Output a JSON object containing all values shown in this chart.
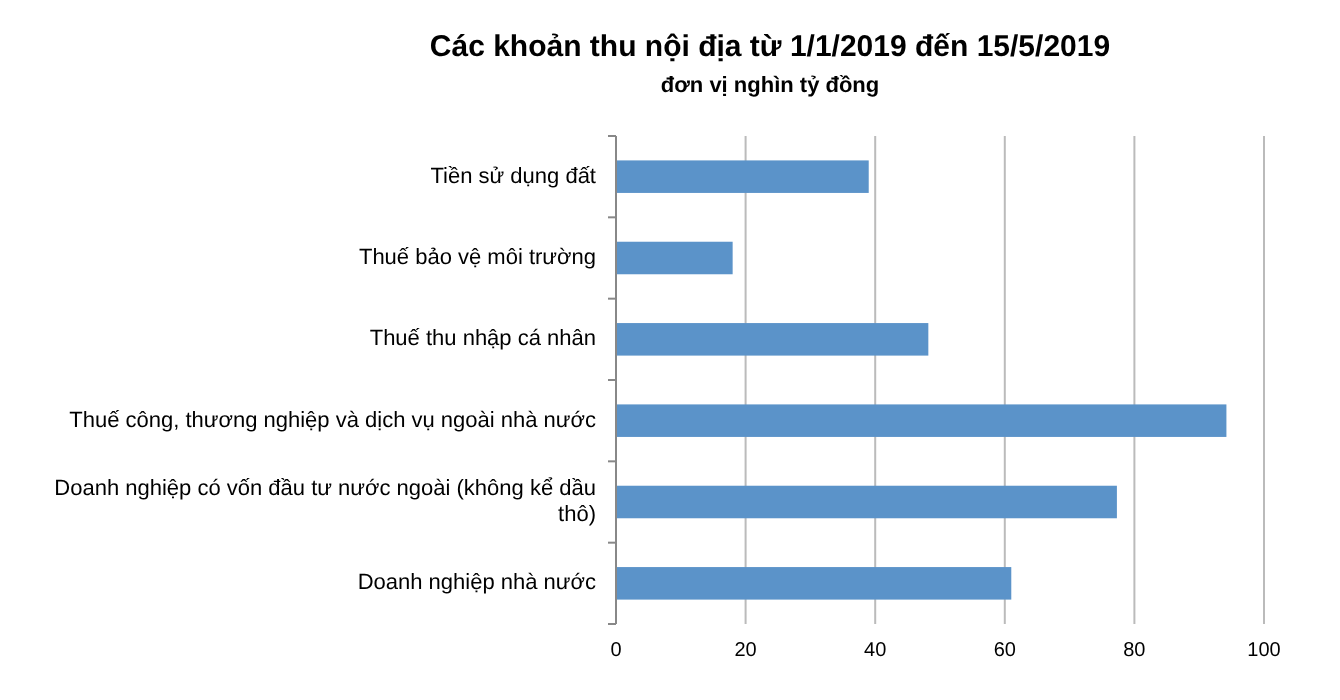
{
  "chart_data": {
    "type": "bar",
    "orientation": "horizontal",
    "title": "Các khoản thu nội địa từ 1/1/2019 đến 15/5/2019",
    "subtitle": "đơn vị nghìn tỷ đồng",
    "categories": [
      "Tiền sử dụng đất",
      "Thuế bảo vệ môi trường",
      "Thuế thu nhập cá nhân",
      "Thuế công, thương nghiệp và dịch vụ ngoài nhà nước",
      "Doanh nghiệp có vốn đầu tư nước ngoài (không kể dầu thô)",
      "Doanh nghiệp nhà nước"
    ],
    "values": [
      39.0,
      18.0,
      48.2,
      94.2,
      77.3,
      61.0
    ],
    "color": "#5b93c9",
    "xlim": [
      0,
      100
    ],
    "xticks": [
      0,
      20,
      40,
      60,
      80,
      100
    ],
    "grid": "x"
  }
}
